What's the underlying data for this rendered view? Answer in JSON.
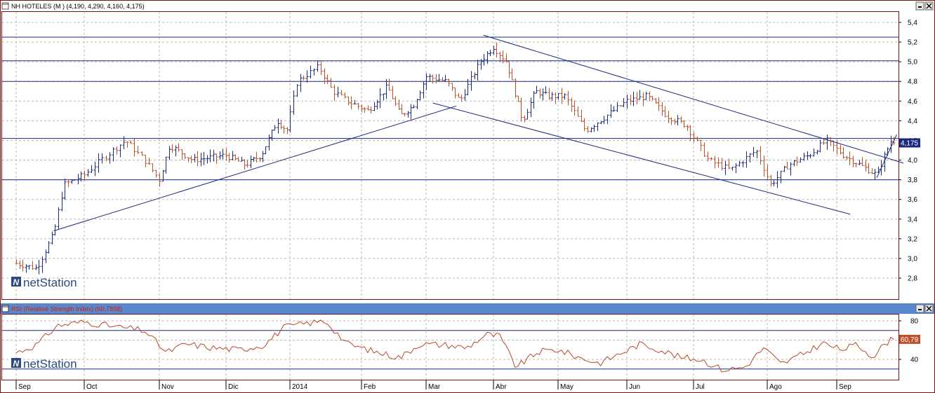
{
  "colors": {
    "up": "#1a2a80",
    "down": "#c0502a",
    "trendline": "#1a2a80",
    "rsi_line": "#b84a28",
    "rsi_header_bg": "#5a88d0",
    "rsi_header_text": "#cc2200",
    "price_header_text": "#1a2a80",
    "badge_price_bg": "#1a2a80",
    "badge_rsi_bg": "#c0502a",
    "grid": "#b8b8b8",
    "frame": "#7a1010"
  },
  "price_panel": {
    "title": "NH HOTELES (M ) (4,190, 4,290, 4,160, 4,175)",
    "last_value_badge": "4,175",
    "logo_text": "netStation"
  },
  "rsi_panel": {
    "title": "RSI (Relative Strength Index) (60,7898)",
    "last_value_badge": "60,79",
    "logo_text": "netStation"
  },
  "window_controls": [
    "minimize-icon",
    "close-icon"
  ],
  "chart_data": [
    {
      "type": "ohlc",
      "title": "NH HOTELES (M ) (4,190, 4,290, 4,160, 4,175)",
      "last": {
        "open": 4.19,
        "high": 4.29,
        "low": 4.16,
        "close": 4.175
      },
      "ylim": [
        2.6,
        5.5
      ],
      "y_ticks": [
        "5,4",
        "5,2",
        "5,0",
        "4,8",
        "4,6",
        "4,4",
        "4,2",
        "4,0",
        "3,8",
        "3,6",
        "3,4",
        "3,2",
        "3,0",
        "2,8"
      ],
      "x_month_labels": [
        "Sep",
        "Oct",
        "Nov",
        "Dic",
        "2014",
        "Feb",
        "Mar",
        "Abr",
        "May",
        "Jun",
        "Jul",
        "Ago",
        "Sep"
      ],
      "horizontal_levels": [
        5.25,
        5.01,
        4.8,
        4.22,
        3.8
      ],
      "approx_path": [
        {
          "m": 0,
          "v": 2.95
        },
        {
          "m": 0.3,
          "v": 2.9
        },
        {
          "m": 0.55,
          "v": 3.25
        },
        {
          "m": 0.7,
          "v": 3.75
        },
        {
          "m": 1.0,
          "v": 3.85
        },
        {
          "m": 1.3,
          "v": 4.05
        },
        {
          "m": 1.55,
          "v": 4.2
        },
        {
          "m": 1.8,
          "v": 4.0
        },
        {
          "m": 2.0,
          "v": 3.8
        },
        {
          "m": 2.15,
          "v": 4.15
        },
        {
          "m": 2.5,
          "v": 4.0
        },
        {
          "m": 3.0,
          "v": 4.05
        },
        {
          "m": 3.3,
          "v": 3.95
        },
        {
          "m": 3.55,
          "v": 4.05
        },
        {
          "m": 3.8,
          "v": 4.4
        },
        {
          "m": 3.95,
          "v": 4.3
        },
        {
          "m": 4.1,
          "v": 4.8
        },
        {
          "m": 4.4,
          "v": 4.95
        },
        {
          "m": 4.6,
          "v": 4.7
        },
        {
          "m": 4.8,
          "v": 4.6
        },
        {
          "m": 5.1,
          "v": 4.5
        },
        {
          "m": 5.4,
          "v": 4.75
        },
        {
          "m": 5.6,
          "v": 4.45
        },
        {
          "m": 5.8,
          "v": 4.55
        },
        {
          "m": 6.0,
          "v": 4.85
        },
        {
          "m": 6.3,
          "v": 4.8
        },
        {
          "m": 6.5,
          "v": 4.6
        },
        {
          "m": 6.8,
          "v": 5.0
        },
        {
          "m": 7.0,
          "v": 5.15
        },
        {
          "m": 7.2,
          "v": 5.0
        },
        {
          "m": 7.45,
          "v": 4.4
        },
        {
          "m": 7.65,
          "v": 4.7
        },
        {
          "m": 7.85,
          "v": 4.65
        },
        {
          "m": 8.1,
          "v": 4.65
        },
        {
          "m": 8.4,
          "v": 4.3
        },
        {
          "m": 8.7,
          "v": 4.45
        },
        {
          "m": 9.0,
          "v": 4.6
        },
        {
          "m": 9.3,
          "v": 4.65
        },
        {
          "m": 9.6,
          "v": 4.45
        },
        {
          "m": 9.9,
          "v": 4.35
        },
        {
          "m": 10.2,
          "v": 4.0
        },
        {
          "m": 10.5,
          "v": 3.9
        },
        {
          "m": 10.85,
          "v": 4.1
        },
        {
          "m": 11.05,
          "v": 3.75
        },
        {
          "m": 11.3,
          "v": 3.95
        },
        {
          "m": 11.6,
          "v": 4.05
        },
        {
          "m": 11.85,
          "v": 4.2
        },
        {
          "m": 12.1,
          "v": 4.05
        },
        {
          "m": 12.35,
          "v": 3.95
        },
        {
          "m": 12.6,
          "v": 3.85
        },
        {
          "m": 12.75,
          "v": 4.1
        },
        {
          "m": 12.85,
          "v": 4.25
        }
      ],
      "trendlines": [
        {
          "from": {
            "m": 0.55,
            "v": 3.28
          },
          "to": {
            "m": 6.45,
            "v": 4.55
          }
        },
        {
          "from": {
            "m": 6.1,
            "v": 4.58
          },
          "to": {
            "m": 12.2,
            "v": 3.45
          }
        },
        {
          "from": {
            "m": 6.85,
            "v": 5.27
          },
          "to": {
            "m": 13.0,
            "v": 3.97
          }
        },
        {
          "from": {
            "m": 12.6,
            "v": 3.82
          },
          "to": {
            "m": 12.9,
            "v": 4.26
          }
        }
      ]
    },
    {
      "type": "line",
      "title": "RSI (Relative Strength Index) (60,7898)",
      "last": 60.79,
      "ylim": [
        20,
        86
      ],
      "y_ticks": [
        "80",
        "60",
        "40"
      ],
      "horizontal_levels": [
        70,
        30
      ],
      "x_month_labels": [
        "Sep",
        "Oct",
        "Nov",
        "Dic",
        "2014",
        "Feb",
        "Mar",
        "Abr",
        "May",
        "Jun",
        "Jul",
        "Ago",
        "Sep"
      ],
      "approx_path": [
        {
          "m": 0,
          "v": 47
        },
        {
          "m": 0.3,
          "v": 55
        },
        {
          "m": 0.6,
          "v": 75
        },
        {
          "m": 1.0,
          "v": 79
        },
        {
          "m": 1.4,
          "v": 74
        },
        {
          "m": 1.8,
          "v": 70
        },
        {
          "m": 2.1,
          "v": 47
        },
        {
          "m": 2.4,
          "v": 56
        },
        {
          "m": 2.8,
          "v": 52
        },
        {
          "m": 3.2,
          "v": 50
        },
        {
          "m": 3.6,
          "v": 55
        },
        {
          "m": 3.9,
          "v": 73
        },
        {
          "m": 4.2,
          "v": 77
        },
        {
          "m": 4.5,
          "v": 80
        },
        {
          "m": 4.8,
          "v": 56
        },
        {
          "m": 5.2,
          "v": 48
        },
        {
          "m": 5.6,
          "v": 42
        },
        {
          "m": 5.9,
          "v": 56
        },
        {
          "m": 6.3,
          "v": 55
        },
        {
          "m": 6.6,
          "v": 52
        },
        {
          "m": 6.9,
          "v": 66
        },
        {
          "m": 7.1,
          "v": 64
        },
        {
          "m": 7.35,
          "v": 32
        },
        {
          "m": 7.7,
          "v": 48
        },
        {
          "m": 8.0,
          "v": 50
        },
        {
          "m": 8.3,
          "v": 42
        },
        {
          "m": 8.6,
          "v": 36
        },
        {
          "m": 8.9,
          "v": 46
        },
        {
          "m": 9.2,
          "v": 56
        },
        {
          "m": 9.5,
          "v": 50
        },
        {
          "m": 9.8,
          "v": 42
        },
        {
          "m": 10.1,
          "v": 40
        },
        {
          "m": 10.4,
          "v": 29
        },
        {
          "m": 10.7,
          "v": 32
        },
        {
          "m": 10.95,
          "v": 52
        },
        {
          "m": 11.2,
          "v": 35
        },
        {
          "m": 11.5,
          "v": 45
        },
        {
          "m": 11.8,
          "v": 57
        },
        {
          "m": 12.05,
          "v": 50
        },
        {
          "m": 12.3,
          "v": 55
        },
        {
          "m": 12.55,
          "v": 43
        },
        {
          "m": 12.75,
          "v": 58
        },
        {
          "m": 12.85,
          "v": 61
        }
      ]
    }
  ]
}
